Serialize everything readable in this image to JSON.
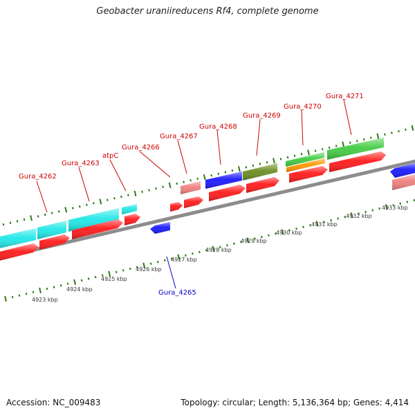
{
  "title": "Geobacter uraniireducens Rf4, complete genome",
  "footer": {
    "accession": "Accession: NC_009483",
    "summary": "Topology: circular; Length: 5,136,364 bp; Genes: 4,414"
  },
  "scale_labels": [
    "4923 kbp",
    "4924 kbp",
    "4925 kbp",
    "4926 kbp",
    "4927 kbp",
    "4928 kbp",
    "4929 kbp",
    "4930 kbp",
    "4931 kbp",
    "4932 kbp",
    "4933 kbp"
  ],
  "gene_labels": [
    {
      "text": "Gura_4262",
      "color": "#cc0000"
    },
    {
      "text": "Gura_4263",
      "color": "#cc0000"
    },
    {
      "text": "atpC",
      "color": "#cc0000"
    },
    {
      "text": "Gura_4265",
      "color": "#0000cc"
    },
    {
      "text": "Gura_4266",
      "color": "#cc0000"
    },
    {
      "text": "Gura_4267",
      "color": "#cc0000"
    },
    {
      "text": "Gura_4268",
      "color": "#cc0000"
    },
    {
      "text": "Gura_4269",
      "color": "#cc0000"
    },
    {
      "text": "Gura_4270",
      "color": "#cc0000"
    },
    {
      "text": "Gura_4271",
      "color": "#cc0000"
    }
  ],
  "colors": {
    "backbone": "#9a9a9a",
    "tick": "#2a7a10",
    "cds": "#ff1a1a",
    "pseudo": "#f08080",
    "reverse_cds": "#1a1aff",
    "cyan": "#22e8e8",
    "green": "#44cc44",
    "olive": "#6b8e23",
    "orange": "#ff9900"
  }
}
